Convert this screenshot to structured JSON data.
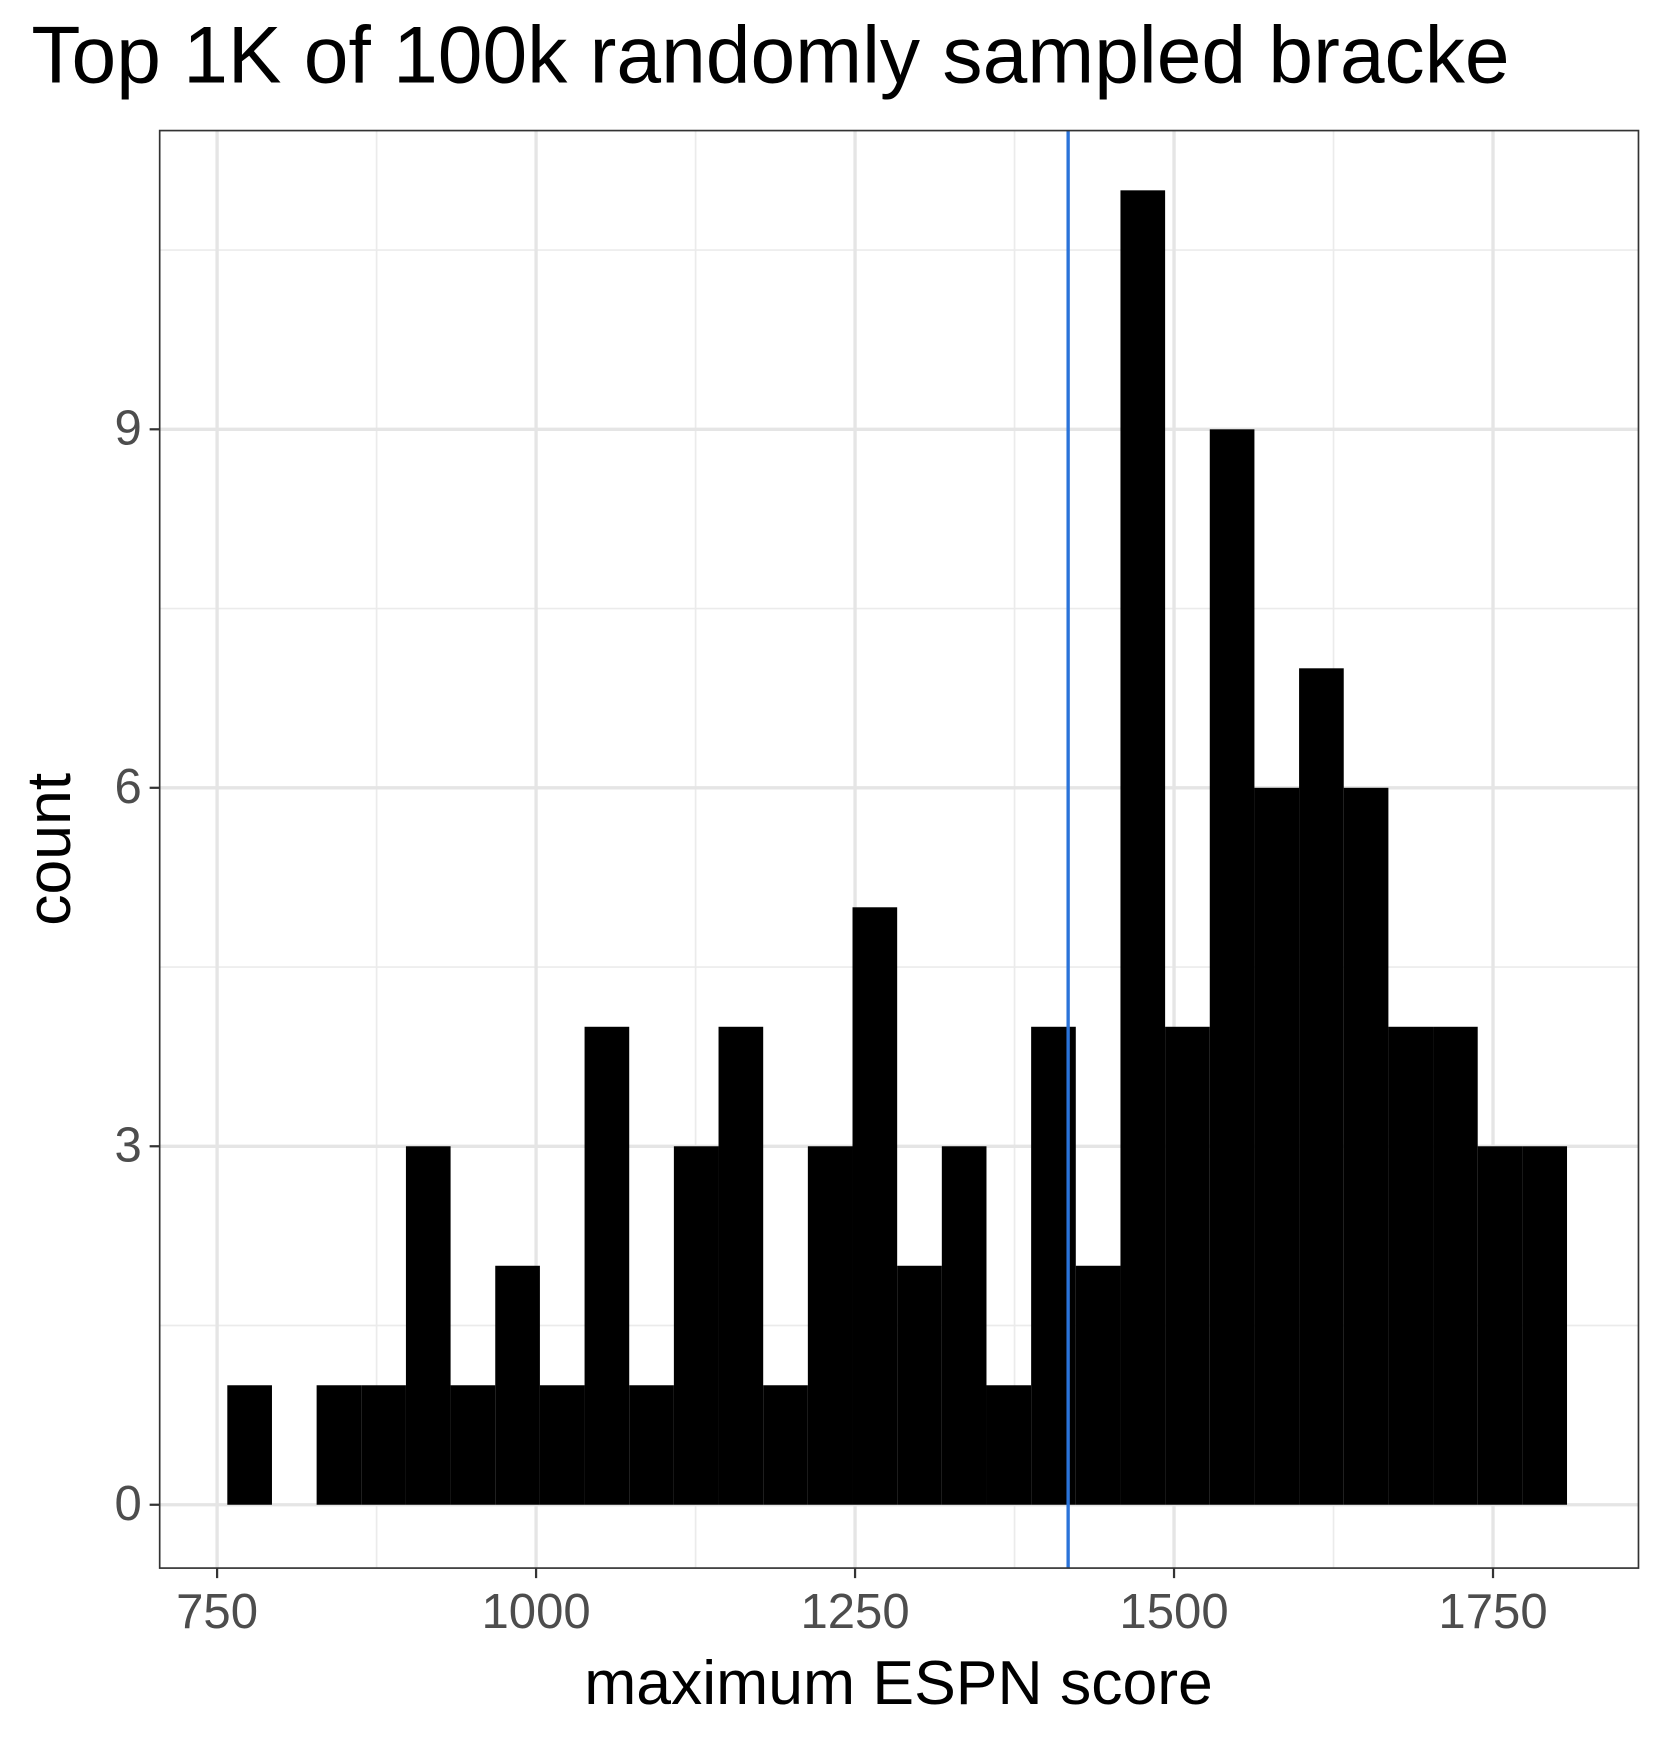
{
  "chart_data": {
    "type": "histogram",
    "title": "Top 1K of 100k randomly sampled bracke",
    "xlabel": "maximum ESPN score",
    "ylabel": "count",
    "bins": [
      758,
      793,
      828,
      863,
      898,
      933,
      968,
      1003,
      1038,
      1073,
      1108,
      1143,
      1178,
      1213,
      1248,
      1283,
      1318,
      1353,
      1388,
      1423,
      1458,
      1493,
      1528,
      1563,
      1598,
      1633,
      1668,
      1703,
      1738,
      1773,
      1808
    ],
    "values": [
      1,
      0,
      1,
      1,
      3,
      1,
      2,
      1,
      4,
      1,
      3,
      4,
      1,
      3,
      5,
      2,
      3,
      1,
      4,
      2,
      11,
      4,
      9,
      6,
      7,
      6,
      4,
      4,
      3,
      3
    ],
    "color": "#000000",
    "vline": 1417,
    "vline_color": "#2a73d9",
    "xlim": [
      705,
      1864
    ],
    "ylim": [
      -0.53,
      11.5
    ],
    "xticks": [
      750,
      1000,
      1250,
      1500,
      1750
    ],
    "yticks": [
      0,
      3,
      6,
      9
    ],
    "minor_xticks": [
      875,
      1125,
      1375,
      1625
    ],
    "minor_yticks": [
      1.5,
      4.5,
      7.5,
      10.5
    ],
    "grid": true
  }
}
